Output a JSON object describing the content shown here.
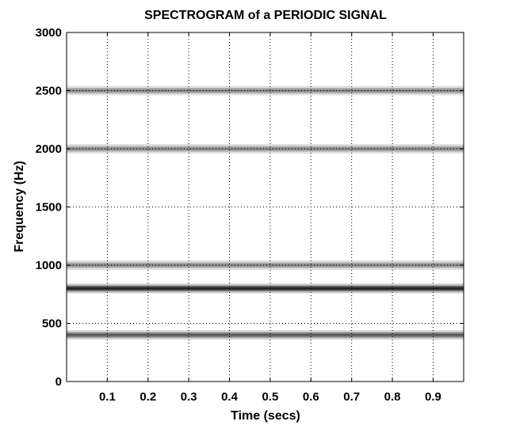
{
  "chart_data": {
    "type": "heatmap",
    "title": "SPECTROGRAM of a PERIODIC SIGNAL",
    "xlabel": "Time (secs)",
    "ylabel": "Frequency (Hz)",
    "xlim": [
      0,
      0.975
    ],
    "ylim": [
      0,
      3000
    ],
    "xticks": [
      0.1,
      0.2,
      0.3,
      0.4,
      0.5,
      0.6,
      0.7,
      0.8,
      0.9
    ],
    "xtick_labels": [
      "0.1",
      "0.2",
      "0.3",
      "0.4",
      "0.5",
      "0.6",
      "0.7",
      "0.8",
      "0.9"
    ],
    "yticks": [
      0,
      500,
      1000,
      1500,
      2000,
      2500,
      3000
    ],
    "ytick_labels": [
      "0",
      "500",
      "1000",
      "1500",
      "2000",
      "2500",
      "3000"
    ],
    "grid": true,
    "colormap": "gray (inverted: dark = high magnitude)",
    "bands": [
      {
        "frequency": 400,
        "intensity": 0.75
      },
      {
        "frequency": 800,
        "intensity": 1.0
      },
      {
        "frequency": 1000,
        "intensity": 0.55
      },
      {
        "frequency": 2000,
        "intensity": 0.55
      },
      {
        "frequency": 2500,
        "intensity": 0.55
      }
    ]
  }
}
